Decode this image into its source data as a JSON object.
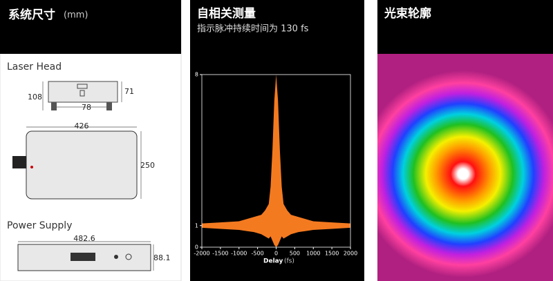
{
  "left": {
    "title": "系统尺寸",
    "unit": "(mm)",
    "laser_head": {
      "label": "Laser Head",
      "dims": [
        108,
        71,
        78,
        426,
        250
      ]
    },
    "power_supply": {
      "label": "Power Supply",
      "dims": [
        482.6,
        88.1
      ]
    }
  },
  "middle": {
    "title": "自相关测量",
    "subtitle": "指示脉冲持续时间为 130 fs",
    "chart_data": {
      "type": "area",
      "xlabel": "Delay",
      "xunit": "(fs)",
      "x": [
        -2000,
        -1500,
        -1000,
        -800,
        -600,
        -400,
        -300,
        -200,
        -150,
        -100,
        -50,
        0,
        50,
        100,
        150,
        200,
        300,
        400,
        600,
        800,
        1000,
        1500,
        2000
      ],
      "series": [
        {
          "color": "#f47a20",
          "values": [
            1.1,
            1.15,
            1.2,
            1.3,
            1.4,
            1.5,
            1.7,
            2.0,
            2.8,
            4.5,
            6.8,
            8,
            6.8,
            4.5,
            2.8,
            2.0,
            1.7,
            1.5,
            1.4,
            1.3,
            1.2,
            1.15,
            1.1
          ]
        },
        {
          "color": "#000000",
          "values": [
            0.9,
            0.85,
            0.8,
            0.75,
            0.7,
            0.6,
            0.5,
            0.4,
            0.5,
            0.3,
            0.1,
            0,
            0.1,
            0.3,
            0.5,
            0.4,
            0.5,
            0.6,
            0.7,
            0.75,
            0.8,
            0.85,
            0.9
          ]
        }
      ],
      "xlim": [
        -2000,
        2000
      ],
      "ylim": [
        0,
        8
      ],
      "xticks": [
        -2000,
        -1500,
        -1000,
        -500,
        0,
        500,
        1000,
        1500,
        2000
      ],
      "yticks": [
        0,
        1,
        8
      ]
    }
  },
  "right": {
    "title": "光束轮廓"
  }
}
